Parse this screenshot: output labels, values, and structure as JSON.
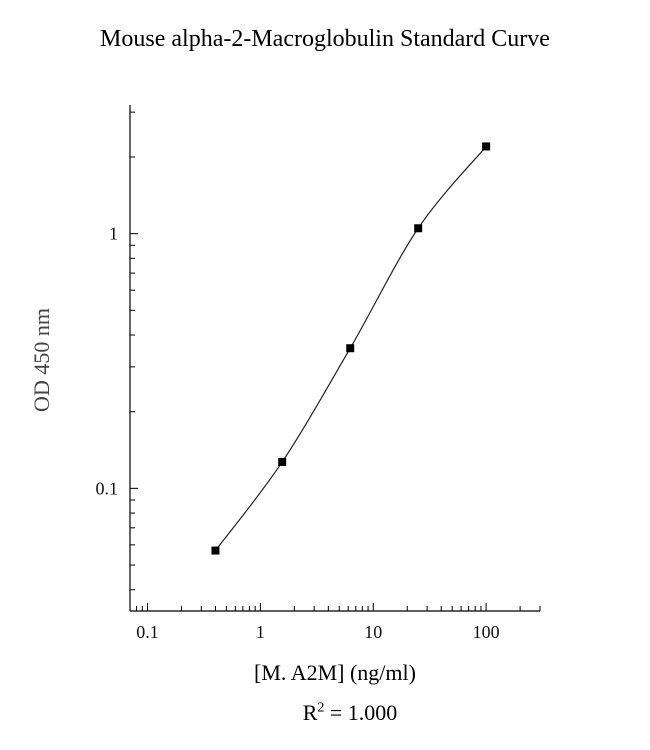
{
  "chart_data": {
    "type": "scatter",
    "title": "Mouse alpha-2-Macroglobulin Standard Curve",
    "xlabel": "[M. A2M] (ng/ml)",
    "ylabel": "OD 450 nm",
    "x_scale": "log",
    "y_scale": "log",
    "xlim": [
      0.07,
      300
    ],
    "ylim": [
      0.033,
      3.2
    ],
    "x_tick_labels": [
      "0.1",
      "1",
      "10",
      "100"
    ],
    "y_tick_labels": [
      "0.1",
      "1"
    ],
    "grid": false,
    "series": [
      {
        "x": [
          0.4,
          1.56,
          6.25,
          25,
          100
        ],
        "y": [
          0.057,
          0.127,
          0.355,
          1.05,
          2.2
        ]
      }
    ],
    "fit": "4-parameter logistic curve",
    "r_squared": {
      "label": "R",
      "exponent": "2",
      "value": "= 1.000"
    }
  }
}
